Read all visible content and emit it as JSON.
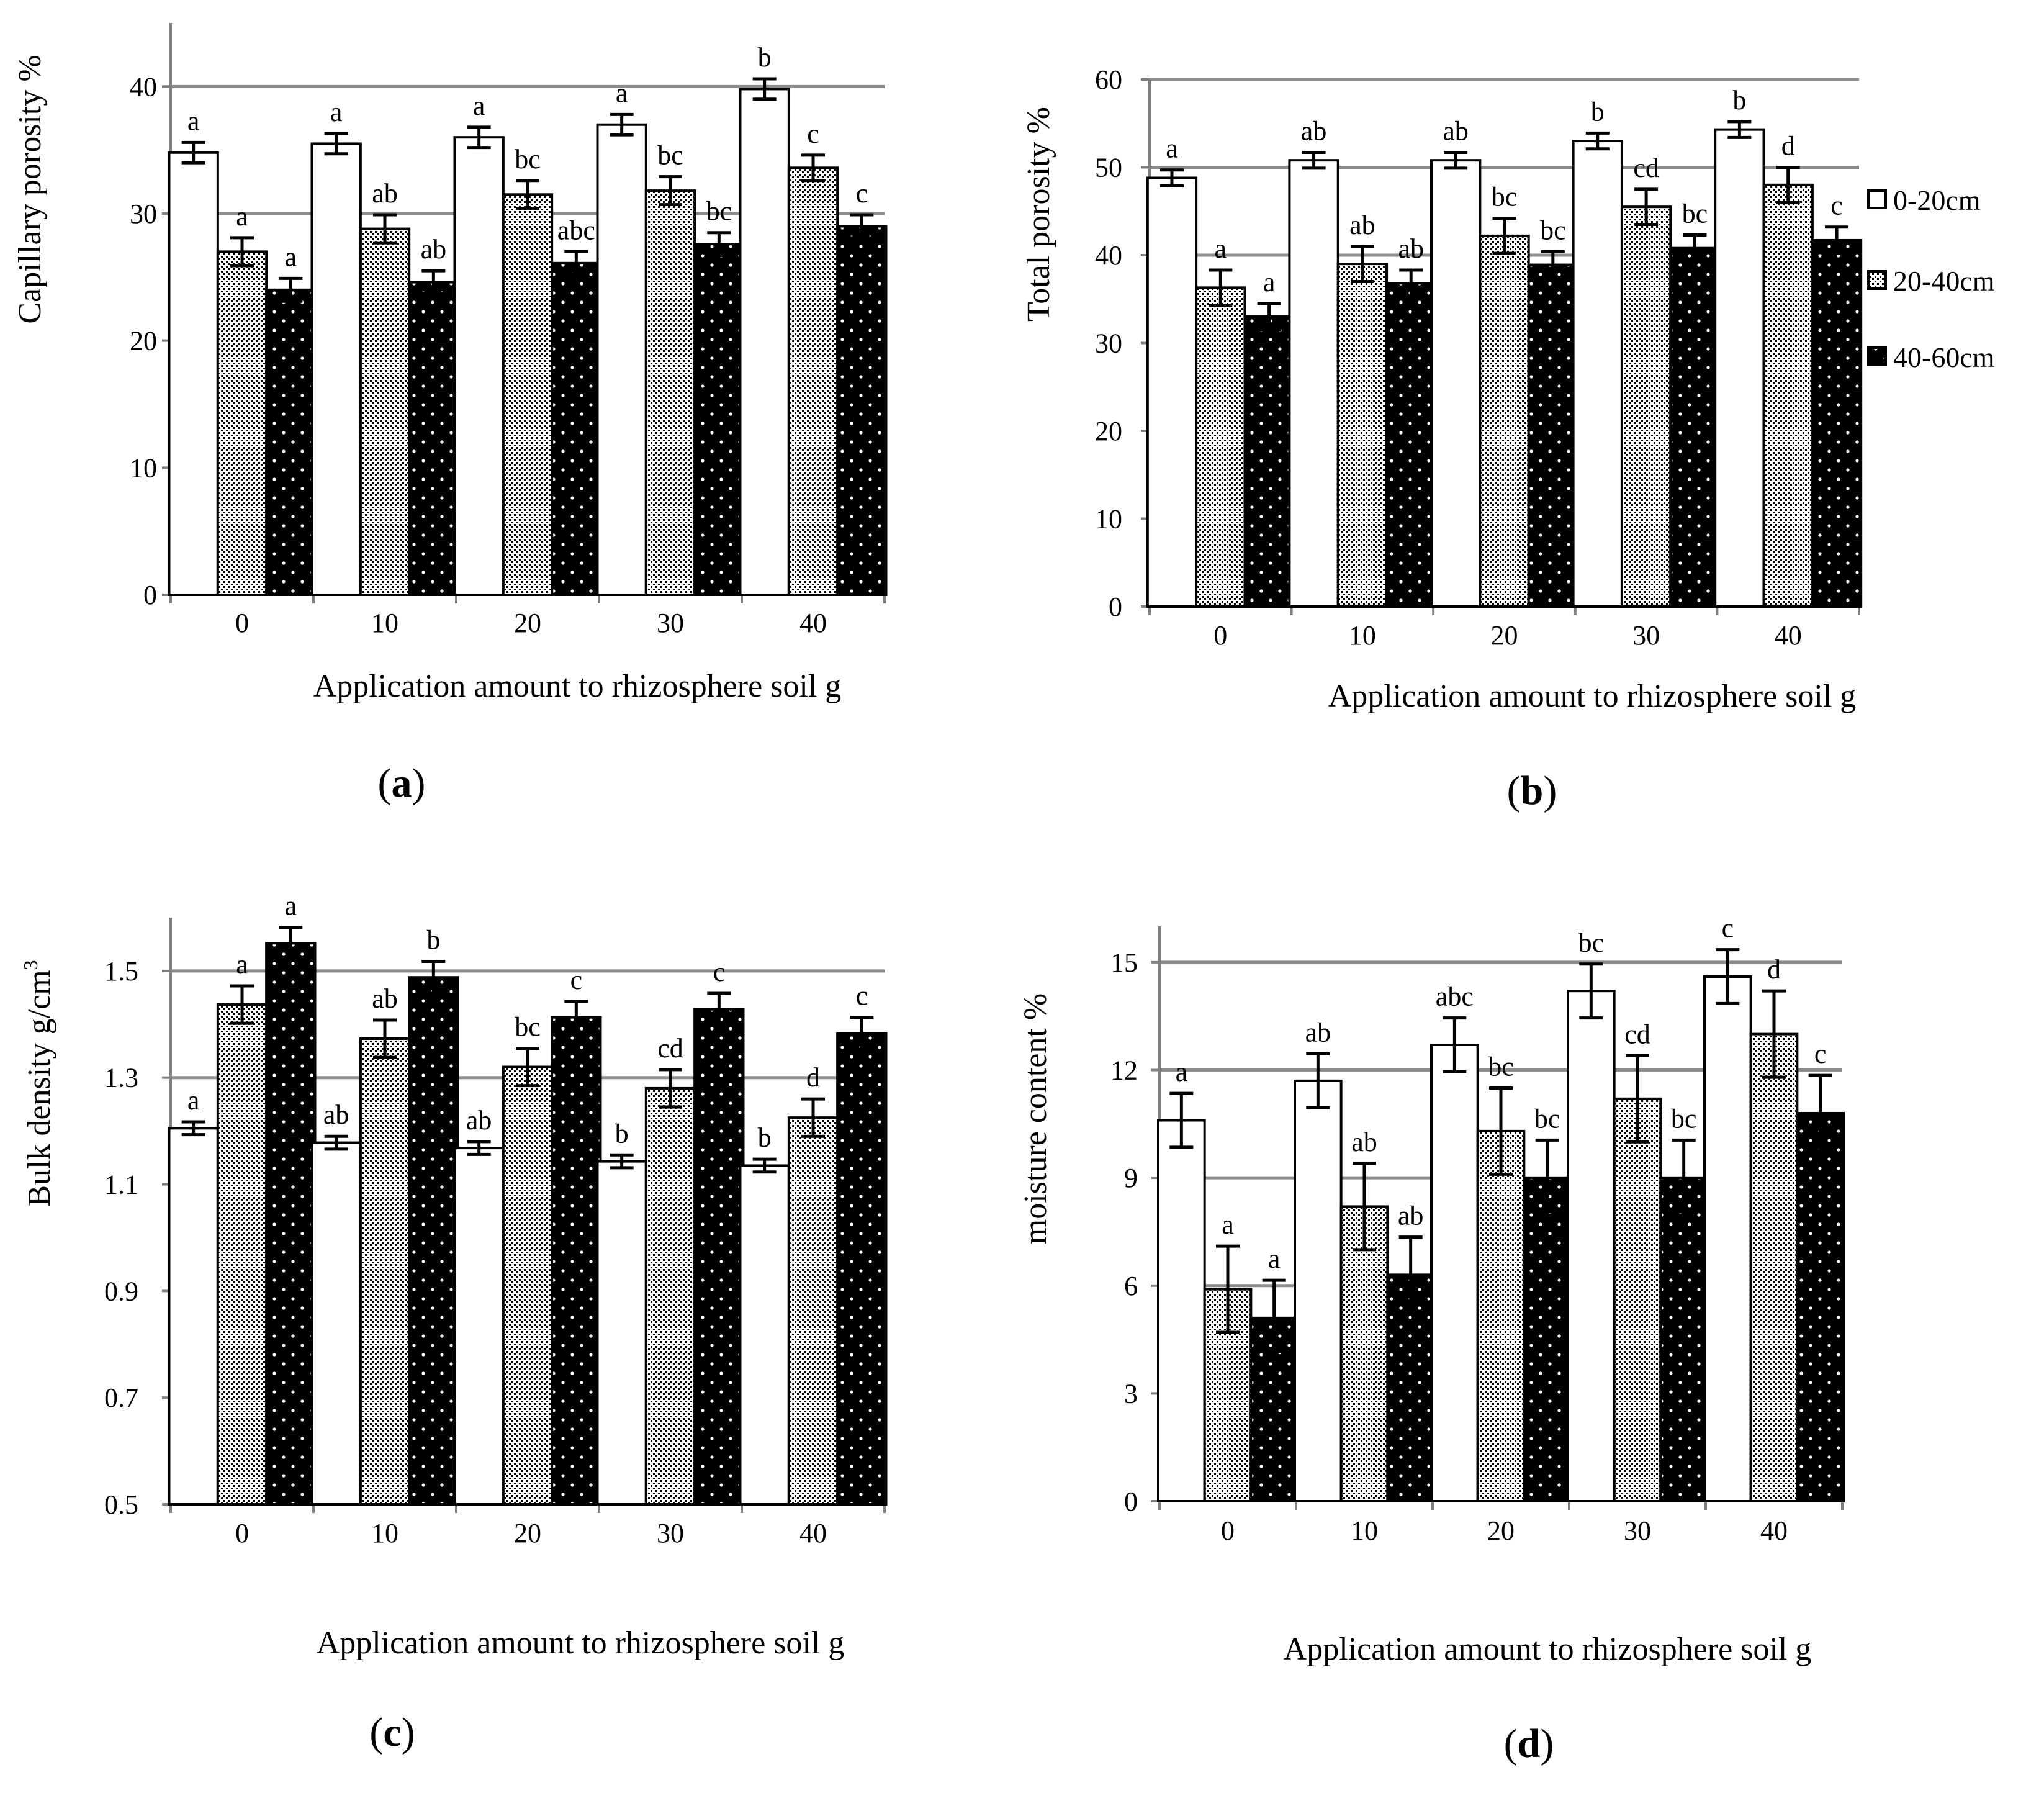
{
  "legend": [
    {
      "label": "0-20cm",
      "pattern": "white"
    },
    {
      "label": "20-40cm",
      "pattern": "dots"
    },
    {
      "label": "40-60cm",
      "pattern": "black"
    }
  ],
  "colors": {
    "grid": "#8c8c8c",
    "axis": "#808080",
    "bar_stroke": "#000000",
    "dark_fill": "#000000"
  },
  "chart_data": [
    {
      "id": "a",
      "type": "bar",
      "panel_label_open": "(",
      "panel_label_letter": "a",
      "panel_label_close": ")",
      "title": "",
      "xlabel": "Application amount to rhizosphere soil  g",
      "ylabel": "Capillary porosity %",
      "categories": [
        "0",
        "10",
        "20",
        "30",
        "40"
      ],
      "ylim": [
        0,
        45
      ],
      "yticks": [
        0,
        10,
        20,
        30,
        40
      ],
      "ytick_labels": [
        "0",
        "10",
        "20",
        "30",
        "40"
      ],
      "grid": true,
      "series": [
        {
          "name": "0-20cm",
          "values": [
            34.8,
            35.5,
            36.0,
            37.0,
            39.8
          ],
          "errors": [
            0.8,
            0.8,
            0.8,
            0.8,
            0.8
          ],
          "labels": [
            "a",
            "a",
            "a",
            "a",
            "b"
          ]
        },
        {
          "name": "20-40cm",
          "values": [
            27.0,
            28.8,
            31.5,
            31.8,
            33.6
          ],
          "errors": [
            1.1,
            1.1,
            1.1,
            1.1,
            1.0
          ],
          "labels": [
            "a",
            "ab",
            "bc",
            "bc",
            "c"
          ]
        },
        {
          "name": "40-60cm",
          "values": [
            24.0,
            24.6,
            26.1,
            27.6,
            29.0
          ],
          "errors": [
            0.9,
            0.9,
            0.9,
            0.9,
            0.9
          ],
          "labels": [
            "a",
            "ab",
            "abc",
            "bc",
            "c"
          ]
        }
      ]
    },
    {
      "id": "b",
      "type": "bar",
      "panel_label_open": "(",
      "panel_label_letter": "b",
      "panel_label_close": ")",
      "title": "",
      "xlabel": "Application amount to rhizosphere soil  g",
      "ylabel": "Total porosity %",
      "categories": [
        "0",
        "10",
        "20",
        "30",
        "40"
      ],
      "ylim": [
        0,
        60
      ],
      "yticks": [
        0,
        10,
        20,
        30,
        40,
        50,
        60
      ],
      "ytick_labels": [
        "0",
        "10",
        "20",
        "30",
        "40",
        "50",
        "60"
      ],
      "grid": true,
      "series": [
        {
          "name": "0-20cm",
          "values": [
            48.8,
            50.8,
            50.8,
            53.0,
            54.3
          ],
          "errors": [
            0.9,
            0.9,
            0.9,
            0.9,
            0.9
          ],
          "labels": [
            "a",
            "ab",
            "ab",
            "b",
            "b"
          ]
        },
        {
          "name": "20-40cm",
          "values": [
            36.3,
            39.0,
            42.2,
            45.5,
            48.0
          ],
          "errors": [
            2.0,
            2.0,
            2.0,
            2.0,
            2.0
          ],
          "labels": [
            "a",
            "ab",
            "bc",
            "cd",
            "d"
          ]
        },
        {
          "name": "40-60cm",
          "values": [
            33.0,
            36.8,
            38.9,
            40.8,
            41.7
          ],
          "errors": [
            1.5,
            1.5,
            1.5,
            1.5,
            1.5
          ],
          "labels": [
            "a",
            "ab",
            "bc",
            "bc",
            "c"
          ]
        }
      ]
    },
    {
      "id": "c",
      "type": "bar",
      "panel_label_open": "(",
      "panel_label_letter": "c",
      "panel_label_close": ")",
      "title": "",
      "xlabel": "Application amount to rhizosphere soil  g",
      "ylabel": "Bulk density  g/cm",
      "ylabel_sup": "3",
      "categories": [
        "0",
        "10",
        "20",
        "30",
        "40"
      ],
      "ylim": [
        0.5,
        1.6
      ],
      "yticks": [
        0.5,
        0.7,
        0.9,
        1.1,
        1.3,
        1.5
      ],
      "ytick_labels": [
        "0.5",
        "0.7",
        "0.9",
        "1.1",
        "1.3",
        "1.5"
      ],
      "grid": true,
      "series": [
        {
          "name": "0-20cm",
          "values": [
            1.205,
            1.178,
            1.168,
            1.143,
            1.135
          ],
          "errors": [
            0.012,
            0.012,
            0.012,
            0.012,
            0.012
          ],
          "labels": [
            "a",
            "ab",
            "ab",
            "b",
            "b"
          ]
        },
        {
          "name": "20-40cm",
          "values": [
            1.437,
            1.373,
            1.32,
            1.28,
            1.225
          ],
          "errors": [
            0.035,
            0.035,
            0.035,
            0.035,
            0.035
          ],
          "labels": [
            "a",
            "ab",
            "bc",
            "cd",
            "d"
          ]
        },
        {
          "name": "40-60cm",
          "values": [
            1.552,
            1.488,
            1.413,
            1.428,
            1.383
          ],
          "errors": [
            0.03,
            0.03,
            0.03,
            0.03,
            0.03
          ],
          "labels": [
            "a",
            "b",
            "c",
            "c",
            "c"
          ]
        }
      ]
    },
    {
      "id": "d",
      "type": "bar",
      "panel_label_open": "(",
      "panel_label_letter": "d",
      "panel_label_close": ")",
      "title": "",
      "xlabel": "Application amount to rhizosphere soil  g",
      "ylabel": "moisture content %",
      "categories": [
        "0",
        "10",
        "20",
        "30",
        "40"
      ],
      "ylim": [
        0,
        16
      ],
      "yticks": [
        0,
        3,
        6,
        9,
        12,
        15
      ],
      "ytick_labels": [
        "0",
        "3",
        "6",
        "9",
        "12",
        "15"
      ],
      "grid": true,
      "series": [
        {
          "name": "0-20cm",
          "values": [
            10.6,
            11.7,
            12.7,
            14.2,
            14.6
          ],
          "errors": [
            0.75,
            0.75,
            0.75,
            0.75,
            0.75
          ],
          "labels": [
            "a",
            "ab",
            "abc",
            "bc",
            "c"
          ]
        },
        {
          "name": "20-40cm",
          "values": [
            5.9,
            8.2,
            10.3,
            11.2,
            13.0
          ],
          "errors": [
            1.2,
            1.2,
            1.2,
            1.2,
            1.2
          ],
          "labels": [
            "a",
            "ab",
            "bc",
            "cd",
            "d"
          ]
        },
        {
          "name": "40-60cm",
          "values": [
            5.1,
            6.3,
            9.0,
            9.0,
            10.8
          ],
          "errors": [
            1.05,
            1.05,
            1.05,
            1.05,
            1.05
          ],
          "labels": [
            "a",
            "ab",
            "bc",
            "bc",
            "c"
          ]
        }
      ]
    }
  ]
}
